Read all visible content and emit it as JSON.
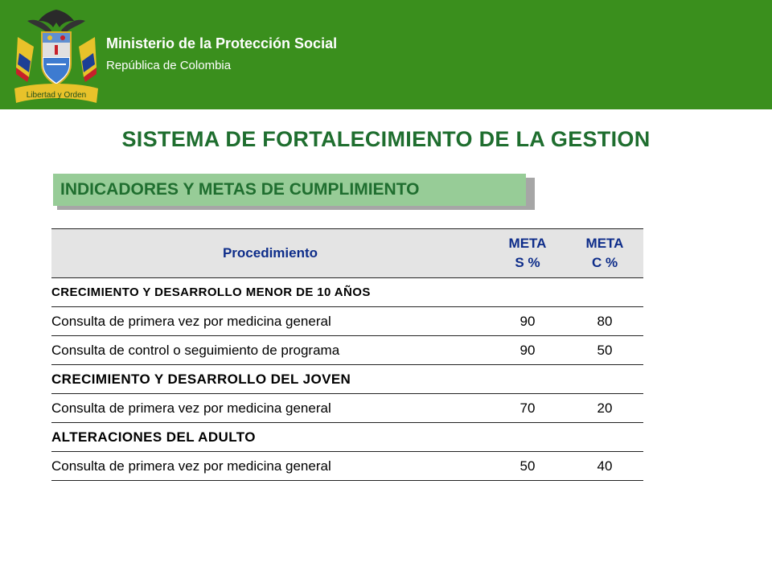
{
  "header": {
    "ministry": "Ministerio de la Protección Social",
    "republic": "República de Colombia",
    "motto": "Libertad y Orden",
    "crest_icon": "colombia-coat-of-arms",
    "bg_color": "#3a8f1d"
  },
  "title": "SISTEMA DE FORTALECIMIENTO DE LA GESTION",
  "subtitle": "INDICADORES Y METAS DE CUMPLIMIENTO",
  "table": {
    "headers": {
      "procedure": "Procedimiento",
      "meta_s_line1": "META",
      "meta_s_line2": "S %",
      "meta_c_line1": "META",
      "meta_c_line2": "C %"
    },
    "sections": [
      {
        "title": "CRECIMIENTO Y DESARROLLO MENOR DE 10 AÑOS",
        "rows": [
          {
            "procedure": "Consulta de primera vez por medicina general",
            "meta_s": "90",
            "meta_c": "80"
          },
          {
            "procedure": "Consulta de control o seguimiento de programa",
            "meta_s": "90",
            "meta_c": "50"
          }
        ]
      },
      {
        "title": "CRECIMIENTO Y DESARROLLO DEL JOVEN",
        "rows": [
          {
            "procedure": "Consulta de primera vez por medicina general",
            "meta_s": "70",
            "meta_c": "20"
          }
        ]
      },
      {
        "title": "ALTERACIONES DEL ADULTO",
        "rows": [
          {
            "procedure": "Consulta de primera vez por medicina general",
            "meta_s": "50",
            "meta_c": "40"
          }
        ]
      }
    ]
  }
}
